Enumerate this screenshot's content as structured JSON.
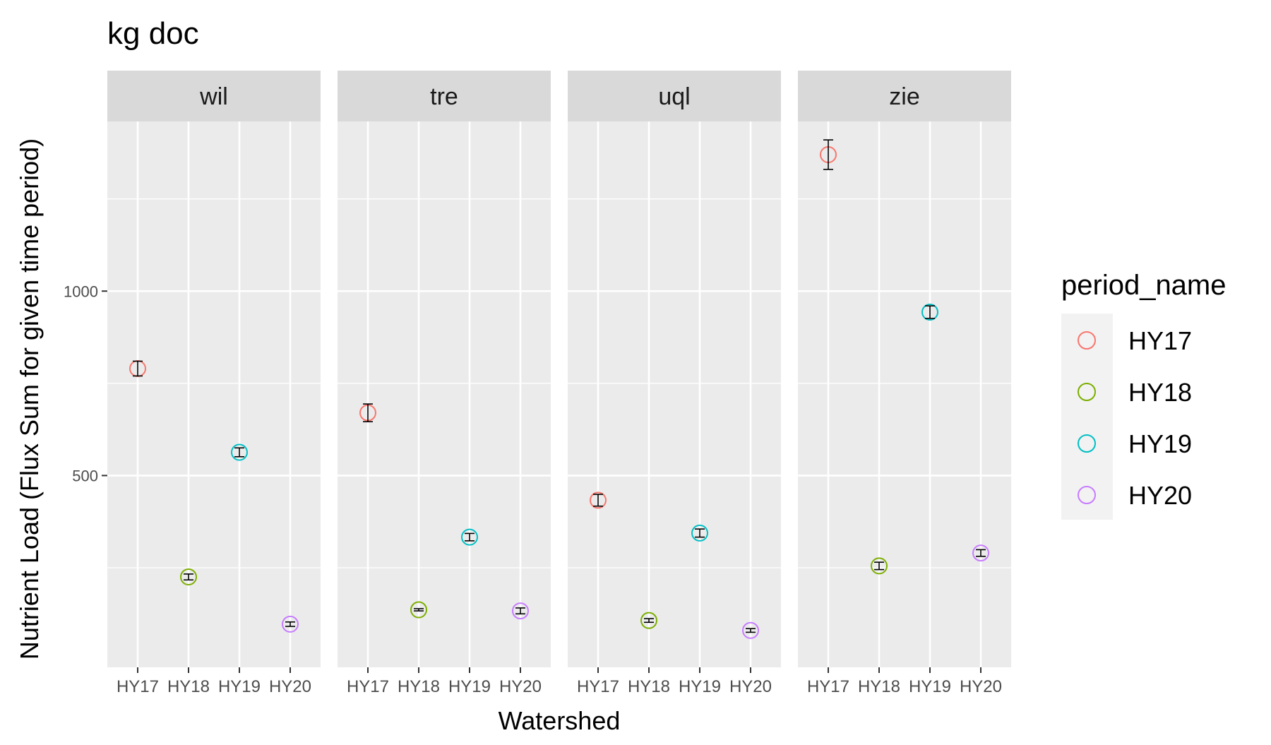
{
  "chart_data": {
    "type": "scatter",
    "title": "kg doc",
    "xlabel": "Watershed",
    "ylabel": "Nutrient Load (Flux Sum for given time period)",
    "ylim": [
      -20,
      1460
    ],
    "yticks": [
      500,
      1000
    ],
    "grid": true,
    "legend": {
      "title": "period_name",
      "position": "right",
      "entries": [
        {
          "name": "HY17",
          "color": "#F8766D"
        },
        {
          "name": "HY18",
          "color": "#7CAE00"
        },
        {
          "name": "HY19",
          "color": "#00BFC4"
        },
        {
          "name": "HY20",
          "color": "#C77CFF"
        }
      ]
    },
    "categories": [
      "HY17",
      "HY18",
      "HY19",
      "HY20"
    ],
    "facets": [
      {
        "name": "wil",
        "points": [
          {
            "x": "HY17",
            "y": 790,
            "lo": 770,
            "hi": 810
          },
          {
            "x": "HY18",
            "y": 225,
            "lo": 217,
            "hi": 233
          },
          {
            "x": "HY19",
            "y": 563,
            "lo": 551,
            "hi": 575
          },
          {
            "x": "HY20",
            "y": 97,
            "lo": 91,
            "hi": 103
          }
        ]
      },
      {
        "name": "tre",
        "points": [
          {
            "x": "HY17",
            "y": 670,
            "lo": 646,
            "hi": 694
          },
          {
            "x": "HY18",
            "y": 136,
            "lo": 133,
            "hi": 139
          },
          {
            "x": "HY19",
            "y": 333,
            "lo": 323,
            "hi": 343
          },
          {
            "x": "HY20",
            "y": 133,
            "lo": 125,
            "hi": 141
          }
        ]
      },
      {
        "name": "uql",
        "points": [
          {
            "x": "HY17",
            "y": 433,
            "lo": 417,
            "hi": 449
          },
          {
            "x": "HY18",
            "y": 107,
            "lo": 102,
            "hi": 112
          },
          {
            "x": "HY19",
            "y": 344,
            "lo": 333,
            "hi": 355
          },
          {
            "x": "HY20",
            "y": 80,
            "lo": 75,
            "hi": 85
          }
        ]
      },
      {
        "name": "zie",
        "points": [
          {
            "x": "HY17",
            "y": 1370,
            "lo": 1330,
            "hi": 1410
          },
          {
            "x": "HY18",
            "y": 255,
            "lo": 245,
            "hi": 265
          },
          {
            "x": "HY19",
            "y": 943,
            "lo": 926,
            "hi": 960
          },
          {
            "x": "HY20",
            "y": 290,
            "lo": 281,
            "hi": 299
          }
        ]
      }
    ]
  }
}
